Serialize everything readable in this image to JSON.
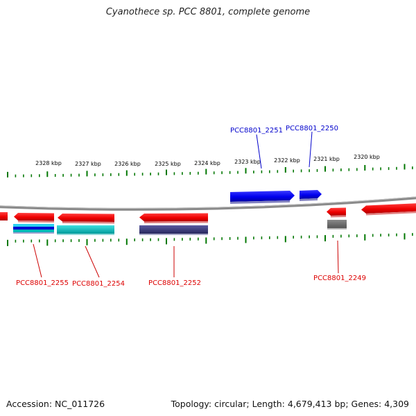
{
  "title": "Cyanothece sp. PCC 8801, complete genome",
  "footer": {
    "accession": "Accession: NC_011726",
    "summary": "Topology: circular; Length: 4,679,413 bp; Genes: 4,309"
  },
  "scale_unit": "kbp",
  "ticks": [
    "2328 kbp",
    "2327 kbp",
    "2326 kbp",
    "2325 kbp",
    "2324 kbp",
    "2323 kbp",
    "2322 kbp",
    "2321 kbp",
    "2320 kbp"
  ],
  "gene_labels": {
    "forward": [
      "PCC8801_2251",
      "PCC8801_2250"
    ],
    "reverse": [
      "PCC8801_2255",
      "PCC8801_2254",
      "PCC8801_2252",
      "PCC8801_2249"
    ]
  },
  "colors": {
    "forward_gene": "#0000ee",
    "reverse_gene": "#ee0000",
    "backbone": "#888888",
    "tick": "#007700",
    "cyan_feature": "#00c8c8",
    "navy_feature": "#3a3a80",
    "gray_feature": "#707070"
  }
}
